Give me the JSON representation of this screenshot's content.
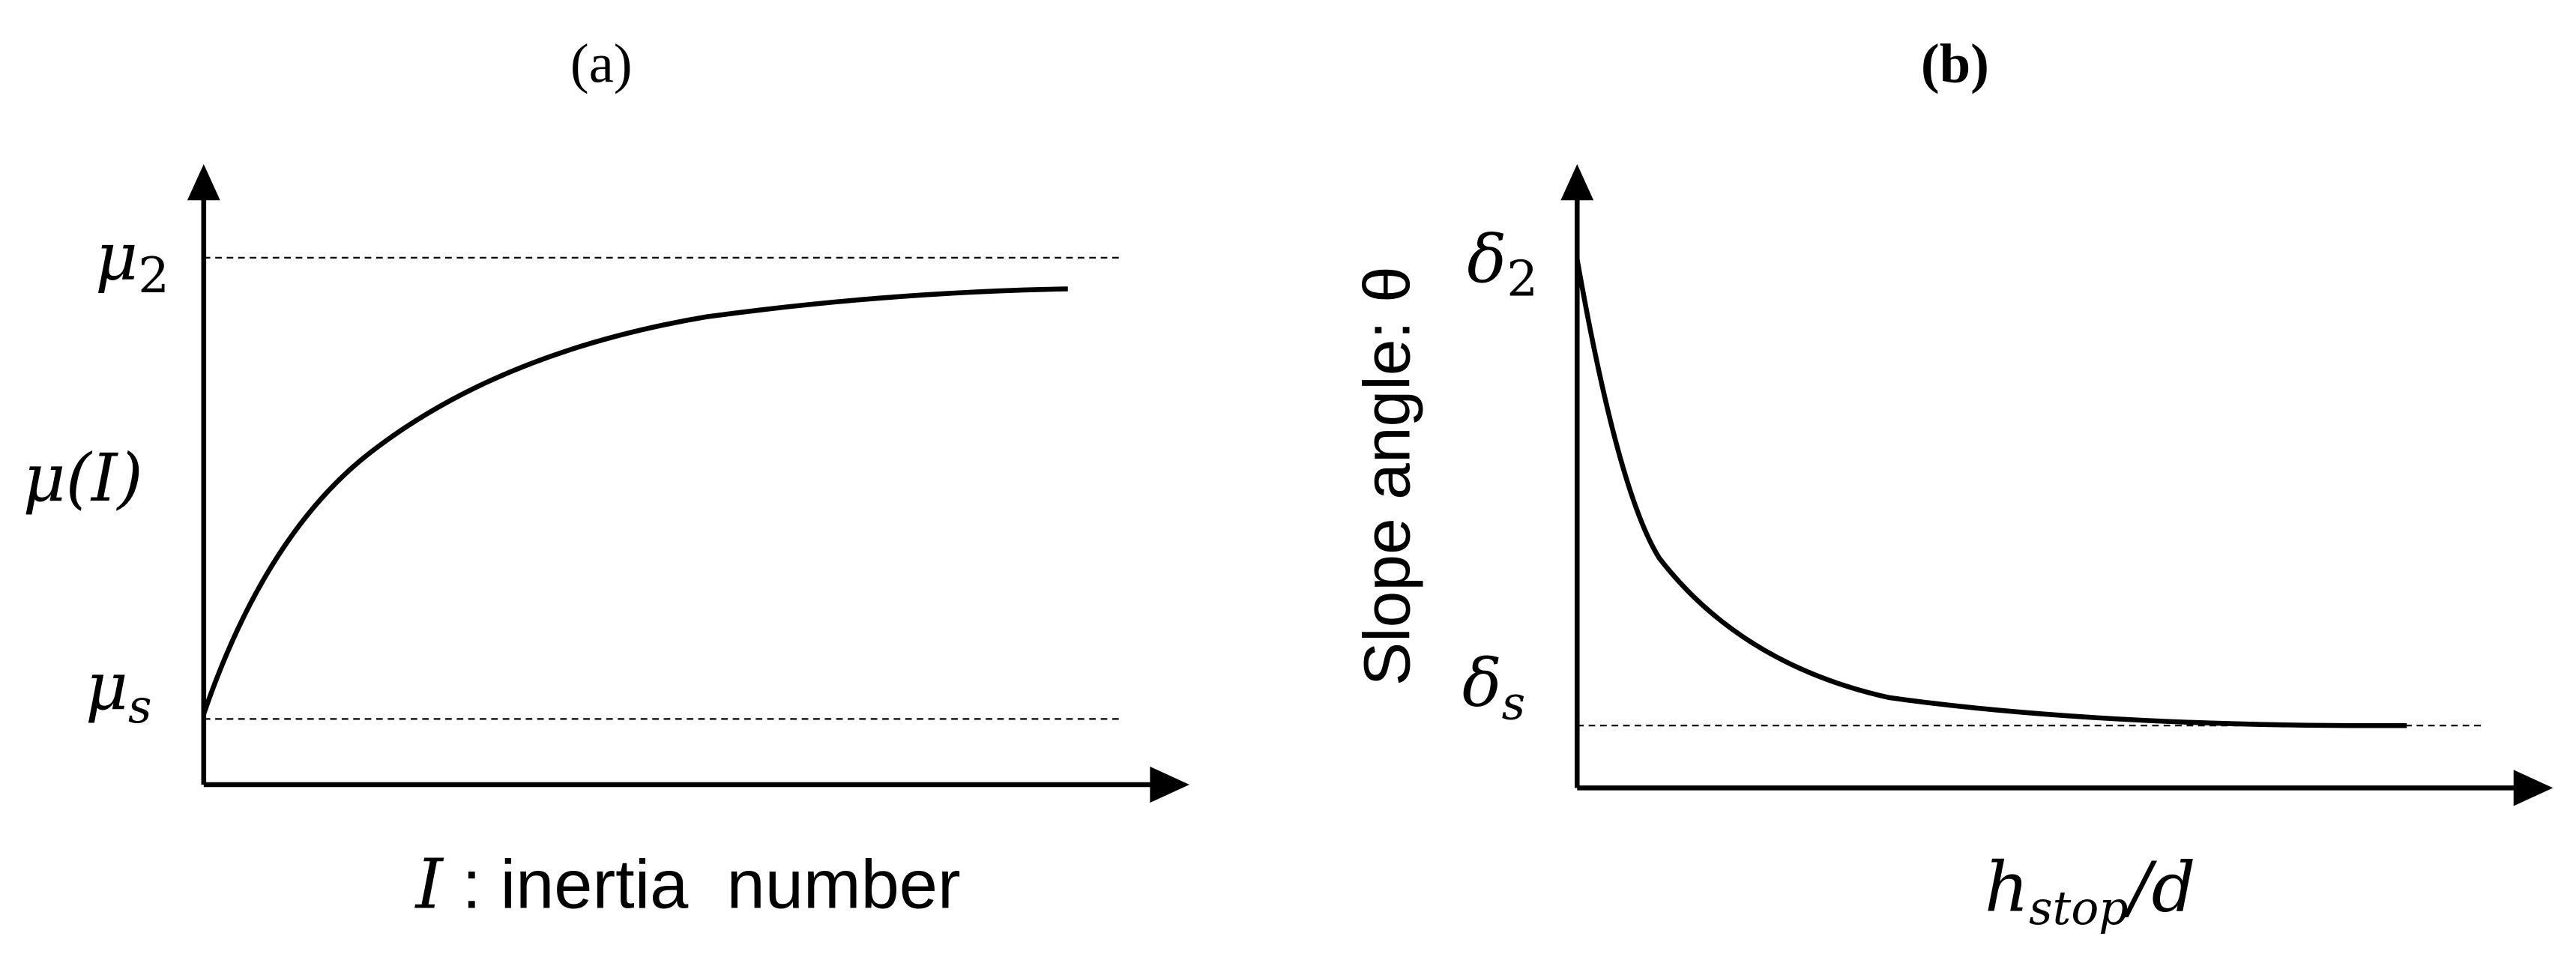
{
  "panels": [
    {
      "label": "(a)",
      "top_level": {
        "symbol": "μ",
        "subscript": "2"
      },
      "y_axis_label": "μ(I)",
      "bottom_level": {
        "symbol": "μ",
        "subscript": "s"
      },
      "x_axis_label": {
        "symbol": "I",
        "text": " : inertia  number"
      }
    },
    {
      "label": "(b)",
      "y_axis_label": "Slope angle: θ",
      "top_level": {
        "symbol": "δ",
        "subscript": "2"
      },
      "bottom_level": {
        "symbol": "δ",
        "subscript": "s"
      },
      "x_axis_label": {
        "symbol": "h",
        "subscript": "stop",
        "text": "/d"
      }
    }
  ]
}
